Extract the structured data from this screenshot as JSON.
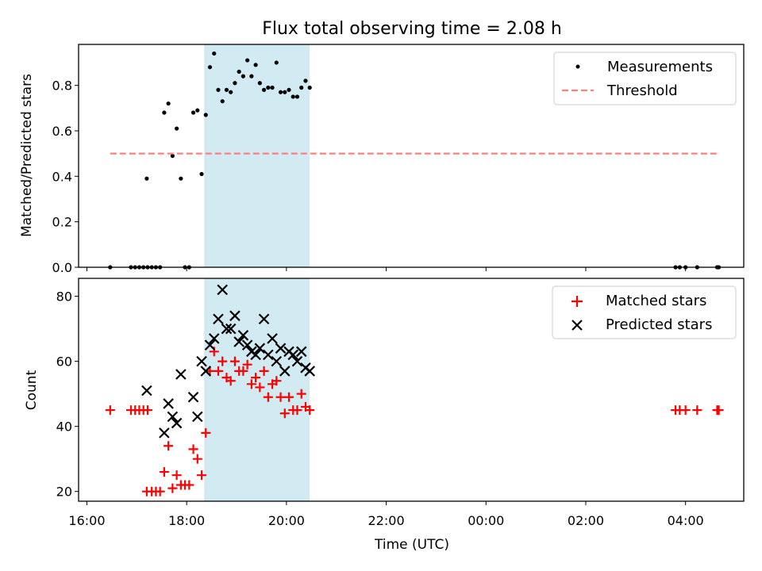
{
  "chart_data": [
    {
      "type": "scatter",
      "title": "Flux total observing time = 2.08 h",
      "xlabel": "",
      "ylabel": "Matched/Predicted stars",
      "ylim": [
        0,
        0.98
      ],
      "xlim": [
        "15:50",
        "05:10"
      ],
      "yticks": [
        "0.0",
        "0.2",
        "0.4",
        "0.6",
        "0.8"
      ],
      "legend_position": "top-right",
      "shaded_band": {
        "x_start": "18:21",
        "x_end": "20:28",
        "color": "#add8e6"
      },
      "series": [
        {
          "name": "Measurements",
          "marker": "dot",
          "color": "#000000",
          "points": [
            [
              "16:28",
              0.0
            ],
            [
              "16:53",
              0.0
            ],
            [
              "16:58",
              0.0
            ],
            [
              "17:03",
              0.0
            ],
            [
              "17:08",
              0.0
            ],
            [
              "17:13",
              0.0
            ],
            [
              "17:18",
              0.0
            ],
            [
              "17:23",
              0.0
            ],
            [
              "17:28",
              0.0
            ],
            [
              "17:12",
              0.39
            ],
            [
              "17:33",
              0.68
            ],
            [
              "17:38",
              0.72
            ],
            [
              "17:43",
              0.49
            ],
            [
              "17:48",
              0.61
            ],
            [
              "17:53",
              0.39
            ],
            [
              "17:58",
              0.0
            ],
            [
              "18:03",
              0.0
            ],
            [
              "18:08",
              0.68
            ],
            [
              "18:13",
              0.69
            ],
            [
              "18:18",
              0.41
            ],
            [
              "18:23",
              0.67
            ],
            [
              "18:28",
              0.88
            ],
            [
              "18:33",
              0.94
            ],
            [
              "18:38",
              0.78
            ],
            [
              "18:43",
              0.73
            ],
            [
              "18:48",
              0.78
            ],
            [
              "18:53",
              0.77
            ],
            [
              "18:58",
              0.81
            ],
            [
              "19:03",
              0.86
            ],
            [
              "19:08",
              0.84
            ],
            [
              "19:13",
              0.91
            ],
            [
              "19:18",
              0.84
            ],
            [
              "19:23",
              0.89
            ],
            [
              "19:28",
              0.81
            ],
            [
              "19:33",
              0.78
            ],
            [
              "19:38",
              0.79
            ],
            [
              "19:43",
              0.79
            ],
            [
              "19:48",
              0.9
            ],
            [
              "19:53",
              0.77
            ],
            [
              "19:58",
              0.77
            ],
            [
              "20:03",
              0.78
            ],
            [
              "20:08",
              0.75
            ],
            [
              "20:13",
              0.75
            ],
            [
              "20:18",
              0.79
            ],
            [
              "20:23",
              0.82
            ],
            [
              "20:28",
              0.79
            ],
            [
              "03:48",
              0.0
            ],
            [
              "03:53",
              0.0
            ],
            [
              "04:00",
              0.0
            ],
            [
              "04:14",
              0.0
            ],
            [
              "04:38",
              0.0
            ],
            [
              "04:40",
              0.0
            ]
          ]
        },
        {
          "name": "Threshold",
          "style": "dashed",
          "color": "#ff7f7f",
          "points": [
            [
              "16:28",
              0.5
            ],
            [
              "04:40",
              0.5
            ]
          ]
        }
      ]
    },
    {
      "type": "scatter",
      "title": "",
      "xlabel": "Time (UTC)",
      "ylabel": "Count",
      "ylim": [
        17,
        85.5
      ],
      "xlim": [
        "15:50",
        "05:10"
      ],
      "xticks": [
        "16:00",
        "18:00",
        "20:00",
        "22:00",
        "00:00",
        "02:00",
        "04:00"
      ],
      "yticks": [
        "20",
        "40",
        "60",
        "80"
      ],
      "legend_position": "top-right",
      "shaded_band": {
        "x_start": "18:21",
        "x_end": "20:28",
        "color": "#add8e6"
      },
      "series": [
        {
          "name": "Matched stars",
          "marker": "plus",
          "color": "#ff0000",
          "points": [
            [
              "16:28",
              45
            ],
            [
              "16:53",
              45
            ],
            [
              "16:58",
              45
            ],
            [
              "17:03",
              45
            ],
            [
              "17:08",
              45
            ],
            [
              "17:13",
              45
            ],
            [
              "17:12",
              20
            ],
            [
              "17:18",
              20
            ],
            [
              "17:23",
              20
            ],
            [
              "17:28",
              20
            ],
            [
              "17:33",
              26
            ],
            [
              "17:38",
              34
            ],
            [
              "17:43",
              21
            ],
            [
              "17:48",
              25
            ],
            [
              "17:53",
              22
            ],
            [
              "17:58",
              22
            ],
            [
              "18:03",
              22
            ],
            [
              "18:08",
              33
            ],
            [
              "18:13",
              30
            ],
            [
              "18:18",
              25
            ],
            [
              "18:23",
              38
            ],
            [
              "18:28",
              57
            ],
            [
              "18:33",
              63
            ],
            [
              "18:38",
              57
            ],
            [
              "18:43",
              60
            ],
            [
              "18:48",
              55
            ],
            [
              "18:53",
              54
            ],
            [
              "18:58",
              60
            ],
            [
              "19:03",
              57
            ],
            [
              "19:08",
              57
            ],
            [
              "19:13",
              59
            ],
            [
              "19:18",
              53
            ],
            [
              "19:23",
              55
            ],
            [
              "19:28",
              52
            ],
            [
              "19:33",
              57
            ],
            [
              "19:38",
              49
            ],
            [
              "19:43",
              53
            ],
            [
              "19:48",
              54
            ],
            [
              "19:53",
              49
            ],
            [
              "19:58",
              44
            ],
            [
              "20:03",
              49
            ],
            [
              "20:08",
              45
            ],
            [
              "20:13",
              45
            ],
            [
              "20:18",
              50
            ],
            [
              "20:23",
              46
            ],
            [
              "20:28",
              45
            ],
            [
              "03:48",
              45
            ],
            [
              "03:53",
              45
            ],
            [
              "04:00",
              45
            ],
            [
              "04:14",
              45
            ],
            [
              "04:38",
              45
            ],
            [
              "04:40",
              45
            ]
          ]
        },
        {
          "name": "Predicted stars",
          "marker": "x",
          "color": "#000000",
          "points": [
            [
              "17:12",
              51
            ],
            [
              "17:33",
              38
            ],
            [
              "17:38",
              47
            ],
            [
              "17:43",
              43
            ],
            [
              "17:48",
              41
            ],
            [
              "17:53",
              56
            ],
            [
              "18:08",
              49
            ],
            [
              "18:13",
              43
            ],
            [
              "18:18",
              60
            ],
            [
              "18:23",
              57
            ],
            [
              "18:28",
              65
            ],
            [
              "18:33",
              67
            ],
            [
              "18:38",
              73
            ],
            [
              "18:43",
              82
            ],
            [
              "18:48",
              70
            ],
            [
              "18:53",
              70
            ],
            [
              "18:58",
              74
            ],
            [
              "19:03",
              66
            ],
            [
              "19:08",
              68
            ],
            [
              "19:13",
              65
            ],
            [
              "19:18",
              63
            ],
            [
              "19:23",
              62
            ],
            [
              "19:28",
              64
            ],
            [
              "19:33",
              73
            ],
            [
              "19:38",
              62
            ],
            [
              "19:43",
              67
            ],
            [
              "19:48",
              60
            ],
            [
              "19:53",
              64
            ],
            [
              "19:58",
              57
            ],
            [
              "20:03",
              63
            ],
            [
              "20:08",
              62
            ],
            [
              "20:13",
              60
            ],
            [
              "20:18",
              63
            ],
            [
              "20:23",
              58
            ],
            [
              "20:28",
              57
            ]
          ]
        }
      ]
    }
  ]
}
